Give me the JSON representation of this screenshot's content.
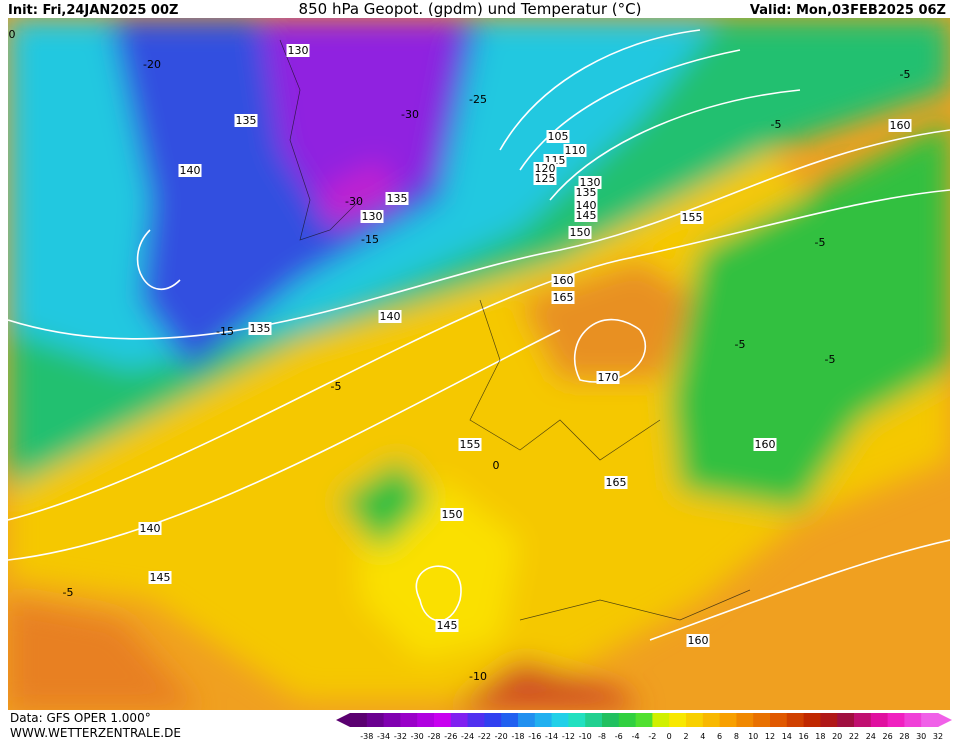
{
  "header": {
    "init": "Init: Fri,24JAN2025 00Z",
    "title": "850 hPa Geopot. (gpdm) und Temperatur (°C)",
    "valid": "Valid: Mon,03FEB2025 06Z"
  },
  "map": {
    "geopotential_labels": [
      130,
      135,
      140,
      105,
      110,
      115,
      120,
      125,
      130,
      135,
      140,
      145,
      150,
      155,
      160,
      160,
      165,
      170,
      130,
      135,
      135,
      140,
      155,
      165,
      160,
      150,
      140,
      145,
      145,
      160
    ],
    "temperature_labels": [
      0,
      -20,
      -25,
      -30,
      -30,
      -15,
      -15,
      -5,
      -5,
      -5,
      -5,
      -5,
      -5,
      0,
      -5,
      -10
    ]
  },
  "footer": {
    "source": "Data: GFS OPER 1.000°",
    "site": "WWW.WETTERZENTRALE.DE"
  },
  "colorbar": {
    "labels": [
      -38,
      -34,
      -32,
      -30,
      -28,
      -26,
      -24,
      -22,
      -20,
      -18,
      -16,
      -14,
      -12,
      -10,
      -8,
      -6,
      -4,
      -2,
      0,
      2,
      4,
      6,
      8,
      10,
      12,
      14,
      16,
      18,
      20,
      22,
      24,
      26,
      28,
      30,
      32
    ]
  }
}
